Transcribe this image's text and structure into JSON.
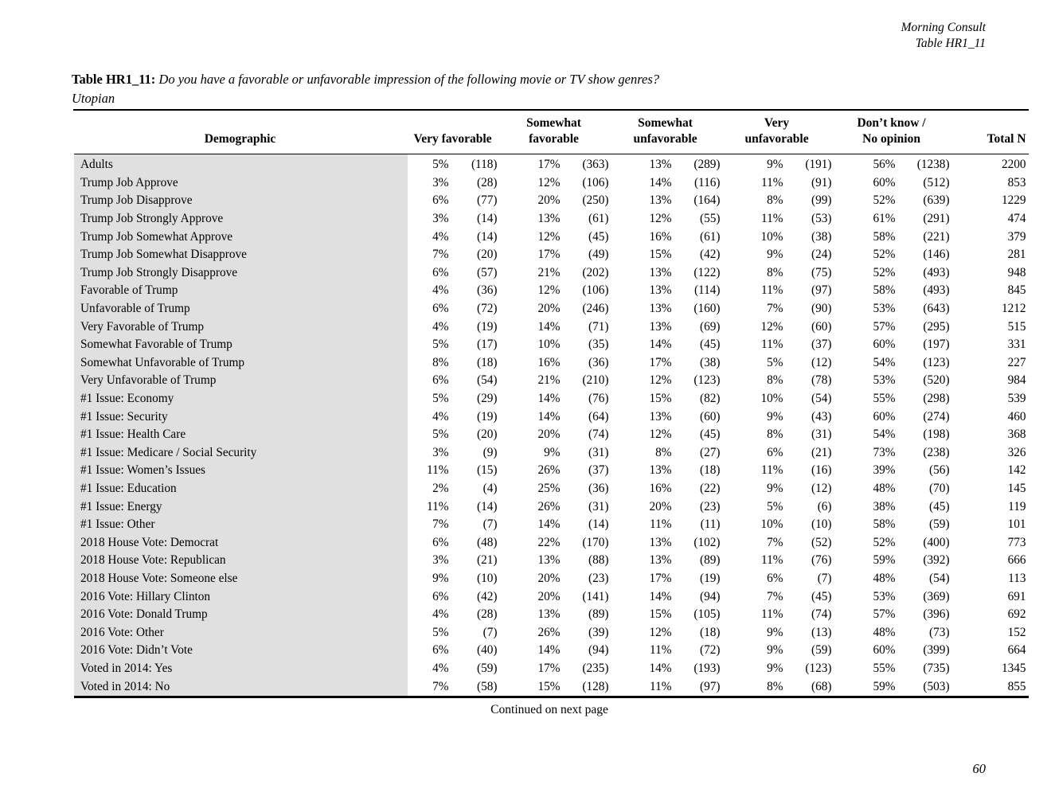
{
  "page_header": {
    "brand": "Morning Consult",
    "table_ref": "Table HR1_11"
  },
  "title": {
    "label": "Table HR1_11:",
    "question": "Do you have a favorable or unfavorable impression of the following movie or TV show genres?",
    "subtitle": "Utopian"
  },
  "table": {
    "demographic_header": "Demographic",
    "group_headers": [
      {
        "line1": "",
        "line2": "Very favorable"
      },
      {
        "line1": "Somewhat",
        "line2": "favorable"
      },
      {
        "line1": "Somewhat",
        "line2": "unfavorable"
      },
      {
        "line1": "Very",
        "line2": "unfavorable"
      },
      {
        "line1": "Don’t know /",
        "line2": "No opinion"
      }
    ],
    "total_header": "Total N",
    "rows": [
      {
        "demographic": "Adults",
        "cells": [
          "5%",
          "(118)",
          "17%",
          "(363)",
          "13%",
          "(289)",
          "9%",
          "(191)",
          "56%",
          "(1238)"
        ],
        "total": "2200"
      },
      {
        "demographic": "Trump Job Approve",
        "cells": [
          "3%",
          "(28)",
          "12%",
          "(106)",
          "14%",
          "(116)",
          "11%",
          "(91)",
          "60%",
          "(512)"
        ],
        "total": "853"
      },
      {
        "demographic": "Trump Job Disapprove",
        "cells": [
          "6%",
          "(77)",
          "20%",
          "(250)",
          "13%",
          "(164)",
          "8%",
          "(99)",
          "52%",
          "(639)"
        ],
        "total": "1229"
      },
      {
        "demographic": "Trump Job Strongly Approve",
        "cells": [
          "3%",
          "(14)",
          "13%",
          "(61)",
          "12%",
          "(55)",
          "11%",
          "(53)",
          "61%",
          "(291)"
        ],
        "total": "474"
      },
      {
        "demographic": "Trump Job Somewhat Approve",
        "cells": [
          "4%",
          "(14)",
          "12%",
          "(45)",
          "16%",
          "(61)",
          "10%",
          "(38)",
          "58%",
          "(221)"
        ],
        "total": "379"
      },
      {
        "demographic": "Trump Job Somewhat Disapprove",
        "cells": [
          "7%",
          "(20)",
          "17%",
          "(49)",
          "15%",
          "(42)",
          "9%",
          "(24)",
          "52%",
          "(146)"
        ],
        "total": "281"
      },
      {
        "demographic": "Trump Job Strongly Disapprove",
        "cells": [
          "6%",
          "(57)",
          "21%",
          "(202)",
          "13%",
          "(122)",
          "8%",
          "(75)",
          "52%",
          "(493)"
        ],
        "total": "948"
      },
      {
        "demographic": "Favorable of Trump",
        "cells": [
          "4%",
          "(36)",
          "12%",
          "(106)",
          "13%",
          "(114)",
          "11%",
          "(97)",
          "58%",
          "(493)"
        ],
        "total": "845"
      },
      {
        "demographic": "Unfavorable of Trump",
        "cells": [
          "6%",
          "(72)",
          "20%",
          "(246)",
          "13%",
          "(160)",
          "7%",
          "(90)",
          "53%",
          "(643)"
        ],
        "total": "1212"
      },
      {
        "demographic": "Very Favorable of Trump",
        "cells": [
          "4%",
          "(19)",
          "14%",
          "(71)",
          "13%",
          "(69)",
          "12%",
          "(60)",
          "57%",
          "(295)"
        ],
        "total": "515"
      },
      {
        "demographic": "Somewhat Favorable of Trump",
        "cells": [
          "5%",
          "(17)",
          "10%",
          "(35)",
          "14%",
          "(45)",
          "11%",
          "(37)",
          "60%",
          "(197)"
        ],
        "total": "331"
      },
      {
        "demographic": "Somewhat Unfavorable of Trump",
        "cells": [
          "8%",
          "(18)",
          "16%",
          "(36)",
          "17%",
          "(38)",
          "5%",
          "(12)",
          "54%",
          "(123)"
        ],
        "total": "227"
      },
      {
        "demographic": "Very Unfavorable of Trump",
        "cells": [
          "6%",
          "(54)",
          "21%",
          "(210)",
          "12%",
          "(123)",
          "8%",
          "(78)",
          "53%",
          "(520)"
        ],
        "total": "984"
      },
      {
        "demographic": "#1 Issue: Economy",
        "cells": [
          "5%",
          "(29)",
          "14%",
          "(76)",
          "15%",
          "(82)",
          "10%",
          "(54)",
          "55%",
          "(298)"
        ],
        "total": "539"
      },
      {
        "demographic": "#1 Issue: Security",
        "cells": [
          "4%",
          "(19)",
          "14%",
          "(64)",
          "13%",
          "(60)",
          "9%",
          "(43)",
          "60%",
          "(274)"
        ],
        "total": "460"
      },
      {
        "demographic": "#1 Issue: Health Care",
        "cells": [
          "5%",
          "(20)",
          "20%",
          "(74)",
          "12%",
          "(45)",
          "8%",
          "(31)",
          "54%",
          "(198)"
        ],
        "total": "368"
      },
      {
        "demographic": "#1 Issue: Medicare / Social Security",
        "cells": [
          "3%",
          "(9)",
          "9%",
          "(31)",
          "8%",
          "(27)",
          "6%",
          "(21)",
          "73%",
          "(238)"
        ],
        "total": "326"
      },
      {
        "demographic": "#1 Issue: Women’s Issues",
        "cells": [
          "11%",
          "(15)",
          "26%",
          "(37)",
          "13%",
          "(18)",
          "11%",
          "(16)",
          "39%",
          "(56)"
        ],
        "total": "142"
      },
      {
        "demographic": "#1 Issue: Education",
        "cells": [
          "2%",
          "(4)",
          "25%",
          "(36)",
          "16%",
          "(22)",
          "9%",
          "(12)",
          "48%",
          "(70)"
        ],
        "total": "145"
      },
      {
        "demographic": "#1 Issue: Energy",
        "cells": [
          "11%",
          "(14)",
          "26%",
          "(31)",
          "20%",
          "(23)",
          "5%",
          "(6)",
          "38%",
          "(45)"
        ],
        "total": "119"
      },
      {
        "demographic": "#1 Issue: Other",
        "cells": [
          "7%",
          "(7)",
          "14%",
          "(14)",
          "11%",
          "(11)",
          "10%",
          "(10)",
          "58%",
          "(59)"
        ],
        "total": "101"
      },
      {
        "demographic": "2018 House Vote: Democrat",
        "cells": [
          "6%",
          "(48)",
          "22%",
          "(170)",
          "13%",
          "(102)",
          "7%",
          "(52)",
          "52%",
          "(400)"
        ],
        "total": "773"
      },
      {
        "demographic": "2018 House Vote: Republican",
        "cells": [
          "3%",
          "(21)",
          "13%",
          "(88)",
          "13%",
          "(89)",
          "11%",
          "(76)",
          "59%",
          "(392)"
        ],
        "total": "666"
      },
      {
        "demographic": "2018 House Vote: Someone else",
        "cells": [
          "9%",
          "(10)",
          "20%",
          "(23)",
          "17%",
          "(19)",
          "6%",
          "(7)",
          "48%",
          "(54)"
        ],
        "total": "113"
      },
      {
        "demographic": "2016 Vote: Hillary Clinton",
        "cells": [
          "6%",
          "(42)",
          "20%",
          "(141)",
          "14%",
          "(94)",
          "7%",
          "(45)",
          "53%",
          "(369)"
        ],
        "total": "691"
      },
      {
        "demographic": "2016 Vote: Donald Trump",
        "cells": [
          "4%",
          "(28)",
          "13%",
          "(89)",
          "15%",
          "(105)",
          "11%",
          "(74)",
          "57%",
          "(396)"
        ],
        "total": "692"
      },
      {
        "demographic": "2016 Vote: Other",
        "cells": [
          "5%",
          "(7)",
          "26%",
          "(39)",
          "12%",
          "(18)",
          "9%",
          "(13)",
          "48%",
          "(73)"
        ],
        "total": "152"
      },
      {
        "demographic": "2016 Vote: Didn’t Vote",
        "cells": [
          "6%",
          "(40)",
          "14%",
          "(94)",
          "11%",
          "(72)",
          "9%",
          "(59)",
          "60%",
          "(399)"
        ],
        "total": "664"
      },
      {
        "demographic": "Voted in 2014: Yes",
        "cells": [
          "4%",
          "(59)",
          "17%",
          "(235)",
          "14%",
          "(193)",
          "9%",
          "(123)",
          "55%",
          "(735)"
        ],
        "total": "1345"
      },
      {
        "demographic": "Voted in 2014: No",
        "cells": [
          "7%",
          "(58)",
          "15%",
          "(128)",
          "11%",
          "(97)",
          "8%",
          "(68)",
          "59%",
          "(503)"
        ],
        "total": "855"
      }
    ]
  },
  "footer": {
    "continued": "Continued on next page",
    "page_number": "60"
  }
}
